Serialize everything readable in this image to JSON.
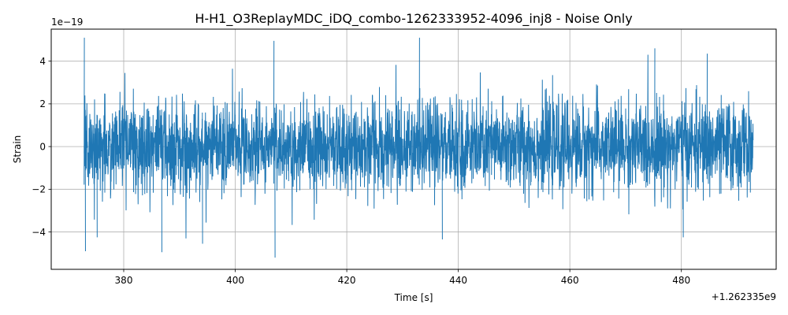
{
  "chart_data": {
    "type": "line",
    "title": "H-H1_O3ReplayMDC_iDQ_combo-1262333952-4096_inj8 - Noise Only",
    "xlabel": "Time [s]",
    "ylabel": "Strain",
    "x_offset_label": "+1.262335e9",
    "y_scale_label": "1e−19",
    "xlim": [
      367,
      497
    ],
    "ylim": [
      -5.75,
      5.5
    ],
    "x_ticks": [
      380,
      400,
      420,
      440,
      460,
      480
    ],
    "x_tick_labels": [
      "380",
      "400",
      "420",
      "440",
      "460",
      "480"
    ],
    "y_ticks": [
      -4,
      -2,
      0,
      2,
      4
    ],
    "y_tick_labels": [
      "−4",
      "−2",
      "0",
      "2",
      "4"
    ],
    "grid": true,
    "series": [
      {
        "color": "#1f77b4",
        "x_range": [
          372.9,
          492.9
        ],
        "std": 1.0,
        "peaks": [
          {
            "x": 372.9,
            "y": 5.1
          },
          {
            "x": 373.1,
            "y": -4.9
          },
          {
            "x": 375.2,
            "y": -4.25
          },
          {
            "x": 386.8,
            "y": -4.95
          },
          {
            "x": 394.1,
            "y": -4.55
          },
          {
            "x": 406.9,
            "y": 4.95
          },
          {
            "x": 407.1,
            "y": -5.2
          },
          {
            "x": 433.0,
            "y": 5.1
          },
          {
            "x": 437.1,
            "y": -4.35
          },
          {
            "x": 475.2,
            "y": 4.6
          },
          {
            "x": 480.3,
            "y": -4.25
          },
          {
            "x": 484.6,
            "y": 4.35
          }
        ]
      }
    ]
  }
}
